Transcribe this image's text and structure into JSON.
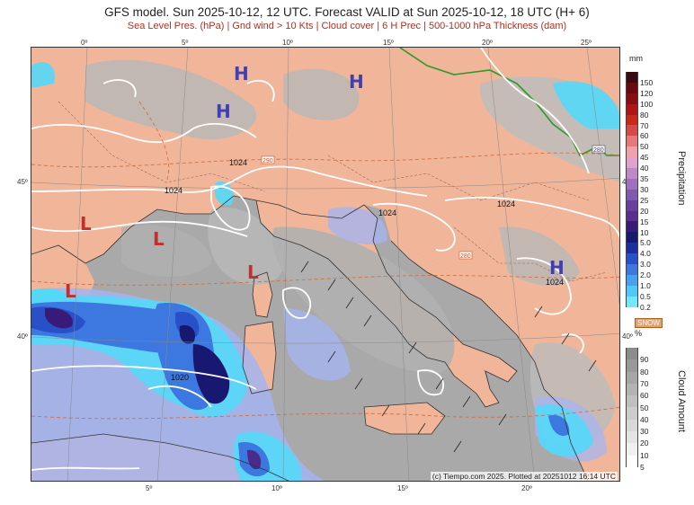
{
  "header": {
    "title": "GFS model. Sun 2025-10-12, 12 UTC. Forecast VALID at Sun 2025-10-12, 18 UTC (H+ 6)",
    "subtitle": "Sea Level Pres. (hPa) | Gnd wind > 10 Kts | Cloud cover | 6 H Prec | 500-1000 hPa Thickness (dam)"
  },
  "axes": {
    "lon_top": [
      "0º",
      "5º",
      "10º",
      "15º",
      "20º",
      "25º"
    ],
    "lon_bottom": [
      "5º",
      "10º",
      "15º",
      "20º"
    ],
    "lat_left": [
      "45º",
      "40º"
    ],
    "lat_right": [
      "45º",
      "40º"
    ]
  },
  "map": {
    "pressure_centers": [
      {
        "type": "H",
        "color": "#4040b0"
      },
      {
        "type": "H",
        "color": "#4040b0"
      },
      {
        "type": "H",
        "color": "#4040b0"
      },
      {
        "type": "H",
        "color": "#4040b0"
      },
      {
        "type": "L",
        "color": "#c03030"
      },
      {
        "type": "L",
        "color": "#c03030"
      },
      {
        "type": "L",
        "color": "#c03030"
      },
      {
        "type": "L",
        "color": "#c03030"
      }
    ],
    "isobar_labels": [
      "1024",
      "1024",
      "1024",
      "1024",
      "1024",
      "1020"
    ],
    "wind_label_1": "290",
    "wind_label_2": "280",
    "wind_label_3": "280",
    "credit": "(c) Tiempo.com 2025. Plotted at 20251012 16:14 UTC"
  },
  "legend_precip": {
    "unit": "mm",
    "title": "Precipitation",
    "levels": [
      "150",
      "120",
      "100",
      "80",
      "70",
      "60",
      "50",
      "45",
      "40",
      "35",
      "30",
      "25",
      "20",
      "15",
      "10",
      "5.0",
      "4.0",
      "3.0",
      "2.0",
      "1.0",
      "0.5",
      "0.2"
    ],
    "colors": [
      "#3a0a12",
      "#6a0a10",
      "#8a0c14",
      "#b01418",
      "#c8281c",
      "#d84848",
      "#e87878",
      "#f0a0a8",
      "#e0a0d0",
      "#c088c8",
      "#a070c0",
      "#8058b0",
      "#6a3fa0",
      "#5a2f90",
      "#3a1a78",
      "#181870",
      "#1a2ea0",
      "#2850c8",
      "#3c78e0",
      "#48a0f0",
      "#50c8f8",
      "#70e8ff"
    ]
  },
  "snow_label": "SNOW",
  "legend_cloud": {
    "unit": "%",
    "title": "Cloud Amount",
    "levels": [
      "90",
      "80",
      "70",
      "60",
      "50",
      "40",
      "30",
      "20",
      "10",
      "5"
    ],
    "colors": [
      "#8c8c8c",
      "#999999",
      "#a6a6a6",
      "#b3b3b3",
      "#bfbfbf",
      "#cccccc",
      "#d8d8d8",
      "#e4e4e4",
      "#f0f0f0",
      "#ffffff"
    ]
  }
}
